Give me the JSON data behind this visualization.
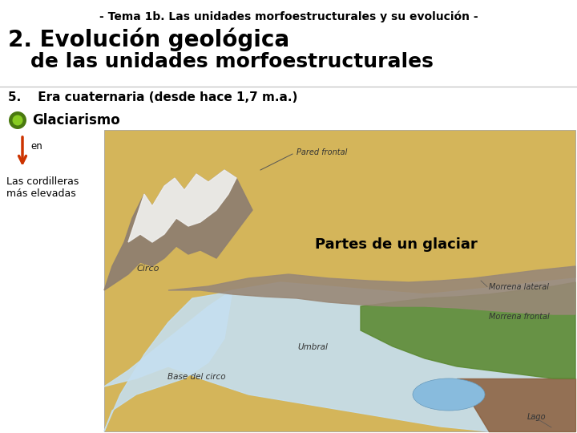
{
  "bg_color": "#ffffff",
  "header_text": "- Tema 1b. Las unidades morfoestructurales y su evolución -",
  "title_line1": "2. Evolución geológica",
  "title_line2": "   de las unidades morfoestructurales",
  "section_text": "5.    Era cuaternaria (desde hace 1,7 m.a.)",
  "bullet_label": "Glaciarismo",
  "arrow_label": "en",
  "arrow_color": "#cc3300",
  "bullet_color_outer": "#4a7a10",
  "bullet_color_inner": "#88cc22",
  "bottom_label": "Las cordilleras\nmás elevadas",
  "caption_text": "Partes de un glaciar",
  "header_fontsize": 10,
  "title_fontsize1": 20,
  "title_fontsize2": 18,
  "section_fontsize": 11,
  "bullet_fontsize": 12,
  "caption_fontsize": 13,
  "terrain_color": "#d4b55a",
  "glacier_color": "#c5dff0",
  "rock_color": "#a09070",
  "snow_color": "#e8e8e8",
  "veg_color": "#5a8830",
  "lake_color": "#88bbdd",
  "brown_color": "#8b5e3c"
}
